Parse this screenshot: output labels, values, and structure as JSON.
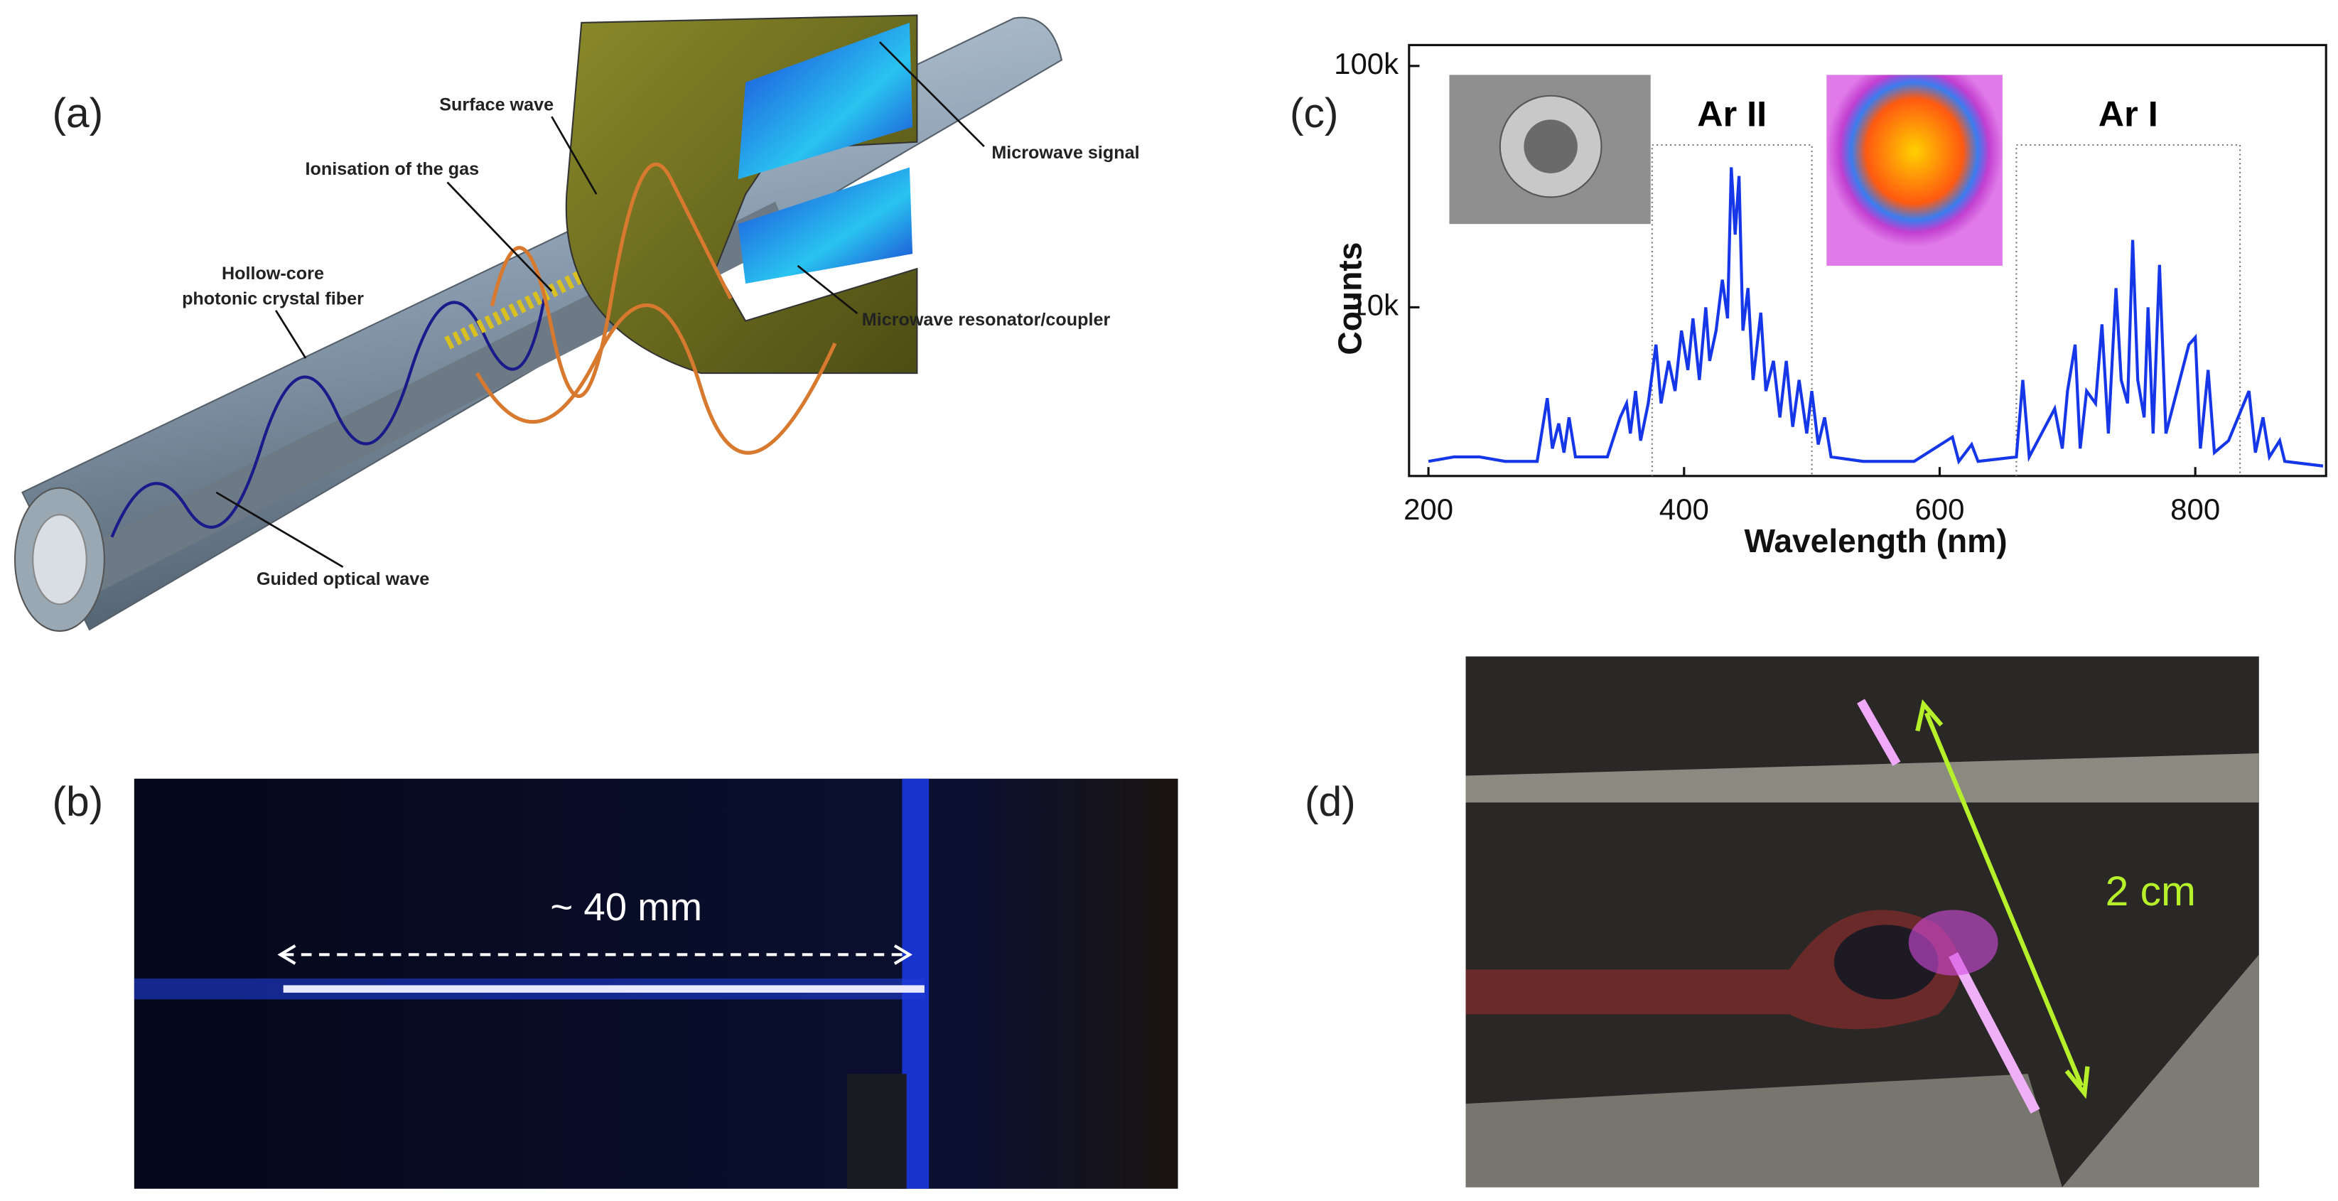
{
  "panel_labels": [
    "(a)",
    "(b)",
    "(c)",
    "(d)"
  ],
  "diagram": {
    "labels": [
      "Surface wave",
      "Ionisation of the gas",
      "Hollow-core",
      "photonic crystal fiber",
      "Microwave signal",
      "Microwave resonator/coupler",
      "Guided optical wave"
    ]
  },
  "photo_b": {
    "annotation": "~ 40 mm"
  },
  "photo_d": {
    "annotation": "2 cm"
  },
  "chart_data": {
    "type": "line",
    "x_label": "Wavelength (nm)",
    "y_label": "Counts",
    "log_y": true,
    "color": "#1537e8",
    "xlim": [
      200,
      900
    ],
    "xticks": [
      200,
      400,
      600,
      800
    ],
    "ylim": [
      2000,
      100000
    ],
    "yticks": [
      {
        "value": 10000,
        "label": "10k"
      },
      {
        "value": 100000,
        "label": "100k"
      }
    ],
    "regions": [
      {
        "label": "Ar II",
        "x": [
          375,
          500
        ]
      },
      {
        "label": "Ar I",
        "x": [
          660,
          835
        ]
      }
    ],
    "x": [
      200,
      220,
      240,
      260,
      285,
      293,
      297,
      302,
      306,
      310,
      315,
      340,
      350,
      355,
      358,
      362,
      366,
      372,
      378,
      382,
      388,
      393,
      398,
      403,
      407,
      412,
      417,
      420,
      425,
      430,
      434,
      437,
      440,
      443,
      446,
      450,
      454,
      460,
      464,
      470,
      475,
      480,
      485,
      490,
      496,
      500,
      505,
      510,
      515,
      540,
      580,
      610,
      615,
      625,
      630,
      660,
      665,
      670,
      690,
      696,
      700,
      706,
      710,
      715,
      722,
      727,
      732,
      738,
      742,
      747,
      751,
      755,
      760,
      763,
      767,
      772,
      777,
      795,
      800,
      804,
      810,
      815,
      826,
      842,
      847,
      853,
      858,
      866,
      870,
      900
    ],
    "values": [
      2300,
      2400,
      2400,
      2300,
      2300,
      4200,
      2600,
      3300,
      2500,
      3500,
      2400,
      2400,
      3500,
      4000,
      3000,
      4500,
      2800,
      4000,
      7000,
      4000,
      6000,
      4500,
      8000,
      5500,
      9000,
      5000,
      10000,
      6000,
      8000,
      13000,
      9000,
      38000,
      20000,
      35000,
      8000,
      12000,
      5000,
      9500,
      4500,
      6000,
      3500,
      6000,
      3200,
      5000,
      3000,
      4500,
      2700,
      3500,
      2400,
      2300,
      2300,
      2900,
      2300,
      2700,
      2300,
      2400,
      5000,
      2400,
      3800,
      2600,
      4500,
      7000,
      2600,
      4500,
      4000,
      8500,
      3000,
      12000,
      5000,
      4000,
      19000,
      5000,
      3500,
      10000,
      3000,
      15000,
      3000,
      7000,
      7500,
      2600,
      5500,
      2500,
      2800,
      4500,
      2500,
      3500,
      2400,
      2800,
      2300,
      2200
    ]
  }
}
